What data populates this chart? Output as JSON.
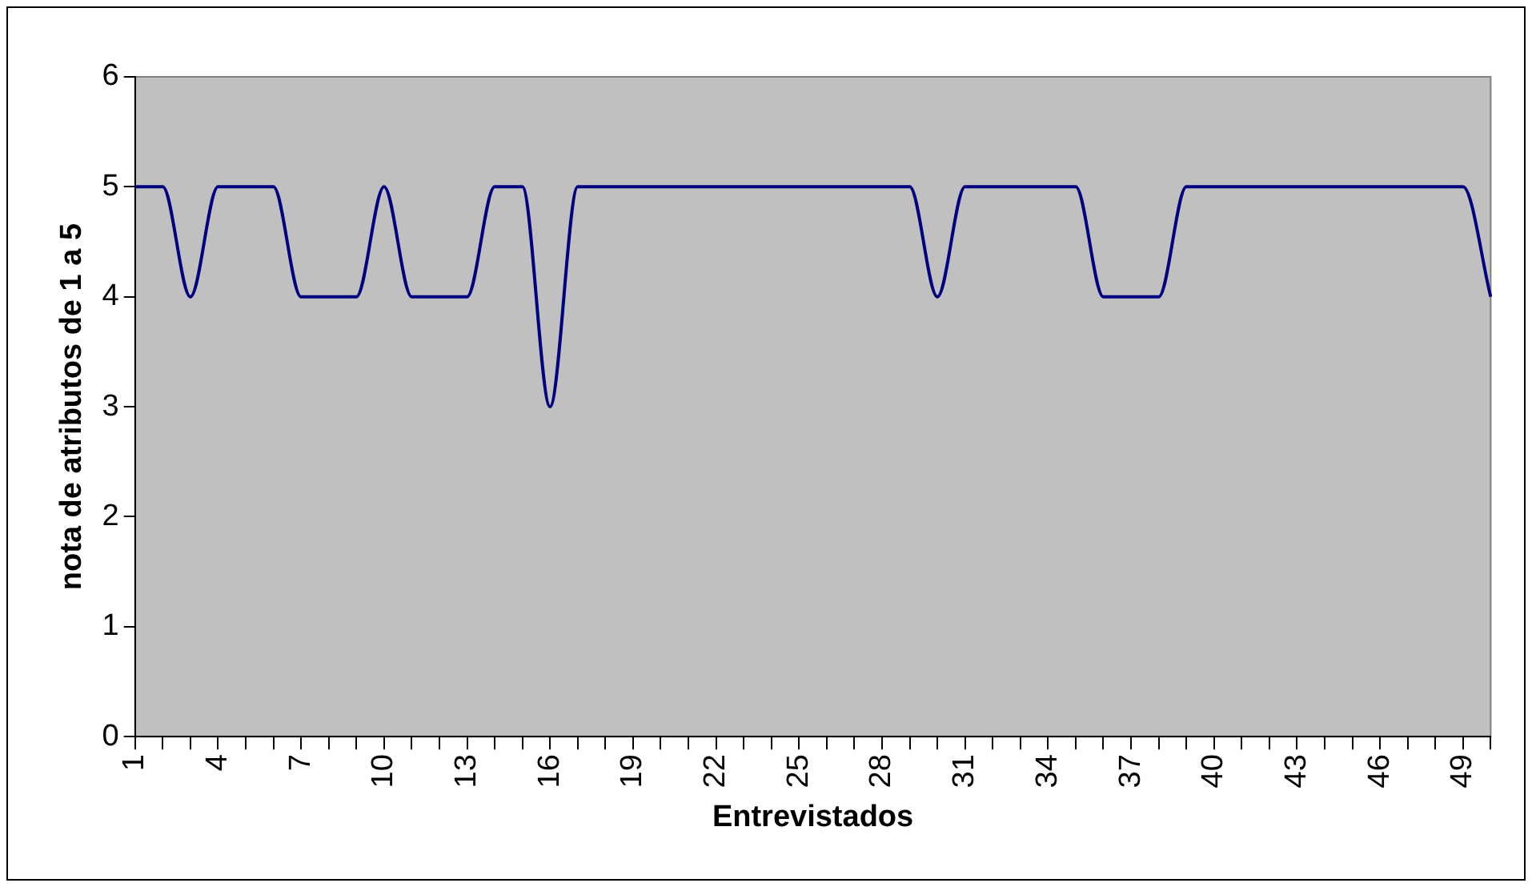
{
  "chart_data": {
    "type": "line",
    "xlabel": "Entrevistados",
    "ylabel": "nota de atributos de 1 a 5",
    "categories": [
      "1",
      null,
      null,
      "4",
      null,
      null,
      "7",
      null,
      null,
      "10",
      null,
      null,
      "13",
      null,
      null,
      "16",
      null,
      null,
      "19",
      null,
      null,
      "22",
      null,
      null,
      "25",
      null,
      null,
      "28",
      null,
      null,
      "31",
      null,
      null,
      "34",
      null,
      null,
      "37",
      null,
      null,
      "40",
      null,
      null,
      "43",
      null,
      null,
      "46",
      null,
      null,
      "49",
      null
    ],
    "series": [
      {
        "color": "#000080",
        "values": [
          5,
          5,
          4,
          5,
          5,
          5,
          4,
          4,
          4,
          5,
          4,
          4,
          4,
          5,
          5,
          3,
          5,
          5,
          5,
          5,
          5,
          5,
          5,
          5,
          5,
          5,
          5,
          5,
          5,
          4,
          5,
          5,
          5,
          5,
          5,
          4,
          4,
          4,
          5,
          5,
          5,
          5,
          5,
          5,
          5,
          5,
          5,
          5,
          5,
          4
        ]
      }
    ],
    "ylim": [
      0,
      6
    ],
    "yticks": [
      0,
      1,
      2,
      3,
      4,
      5,
      6
    ],
    "grid": false,
    "legend": false,
    "marker": "none",
    "line_style": "solid"
  }
}
